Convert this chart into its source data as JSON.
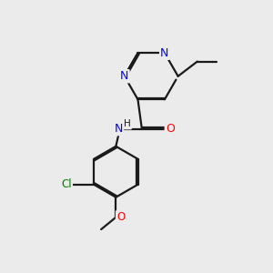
{
  "background_color": "#ebebeb",
  "bond_color": "#1a1a1a",
  "N_color": "#0000ff",
  "O_color": "#ff0000",
  "Cl_color": "#008000",
  "H_color": "#1a1a1a",
  "line_width": 1.6,
  "dbo": 0.055,
  "figsize": [
    3.0,
    3.0
  ],
  "dpi": 100,
  "xlim": [
    0,
    10
  ],
  "ylim": [
    0,
    10
  ]
}
